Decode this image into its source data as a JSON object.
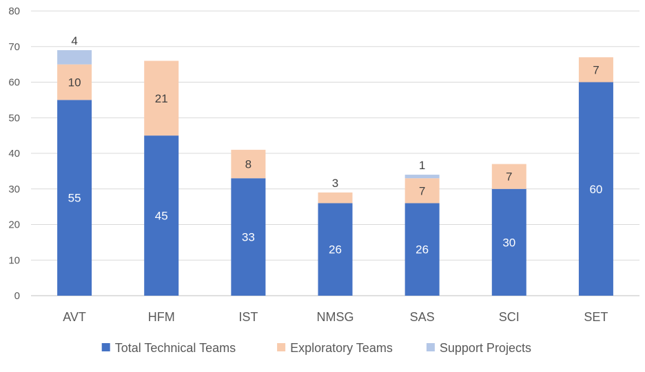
{
  "chart_data": {
    "type": "bar",
    "stacked": true,
    "title": "",
    "xlabel": "",
    "ylabel": "",
    "ylim": [
      0,
      80
    ],
    "yticks": [
      0,
      10,
      20,
      30,
      40,
      50,
      60,
      70,
      80
    ],
    "grid": true,
    "legend_position": "bottom",
    "categories": [
      "AVT",
      "HFM",
      "IST",
      "NMSG",
      "SAS",
      "SCI",
      "SET"
    ],
    "series": [
      {
        "name": "Total Technical Teams",
        "color": "#4472C4",
        "label_color": "#ffffff",
        "values": [
          55,
          45,
          33,
          26,
          26,
          30,
          60
        ]
      },
      {
        "name": "Exploratory Teams",
        "color": "#F8CBAD",
        "label_color": "#404040",
        "values": [
          10,
          21,
          8,
          3,
          7,
          7,
          7
        ]
      },
      {
        "name": "Support Projects",
        "color": "#B4C7E7",
        "label_color": "#404040",
        "values": [
          4,
          0,
          0,
          0,
          1,
          0,
          0
        ]
      }
    ]
  }
}
